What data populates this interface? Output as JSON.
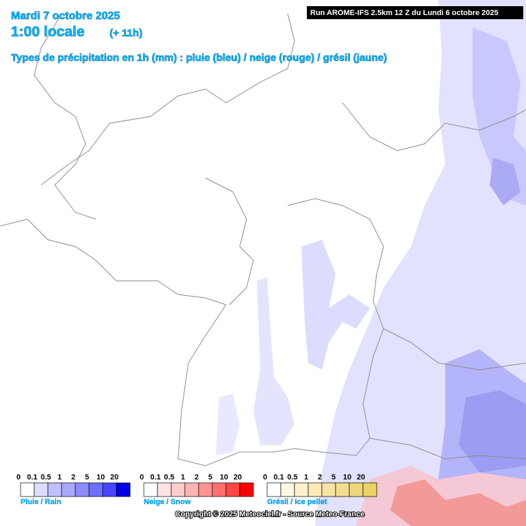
{
  "header": {
    "date": "Mardi 7 octobre 2025",
    "time": "1:00 locale",
    "offset": "(+ 11h)",
    "subtitle": "Types de précipitation en 1h (mm) : pluie (bleu) / neige (rouge) / grésil (jaune)"
  },
  "run": "Run AROME-IFS 2.5km 12 Z du Lundi 6 octobre 2025",
  "legends": [
    {
      "label": "Pluie / Rain",
      "ticks": [
        0,
        0.1,
        0.5,
        1,
        2,
        5,
        10,
        20
      ],
      "colors": [
        "#ffffff",
        "#dcdcff",
        "#c0c0ff",
        "#a8a8ff",
        "#8c8cff",
        "#6e6eff",
        "#4646ff",
        "#0000e6"
      ]
    },
    {
      "label": "Neige / Snow",
      "ticks": [
        0,
        0.1,
        0.5,
        1,
        2,
        5,
        10,
        20
      ],
      "colors": [
        "#ffffff",
        "#ffe4e4",
        "#ffcccc",
        "#ffb4b4",
        "#ff9494",
        "#ff7070",
        "#ff4646",
        "#ff0000"
      ]
    },
    {
      "label": "Grésil / Ice pellet",
      "ticks": [
        0,
        0.1,
        0.5,
        1,
        2,
        5,
        10,
        20
      ],
      "colors": [
        "#ffffff",
        "#fff7e4",
        "#fff0cc",
        "#fbe9b8",
        "#f7e3a4",
        "#f3de90",
        "#efd87c",
        "#ebd264"
      ]
    }
  ],
  "copyright": "Copyright © 2025 Meteociel.fr - Source Meteo-France"
}
